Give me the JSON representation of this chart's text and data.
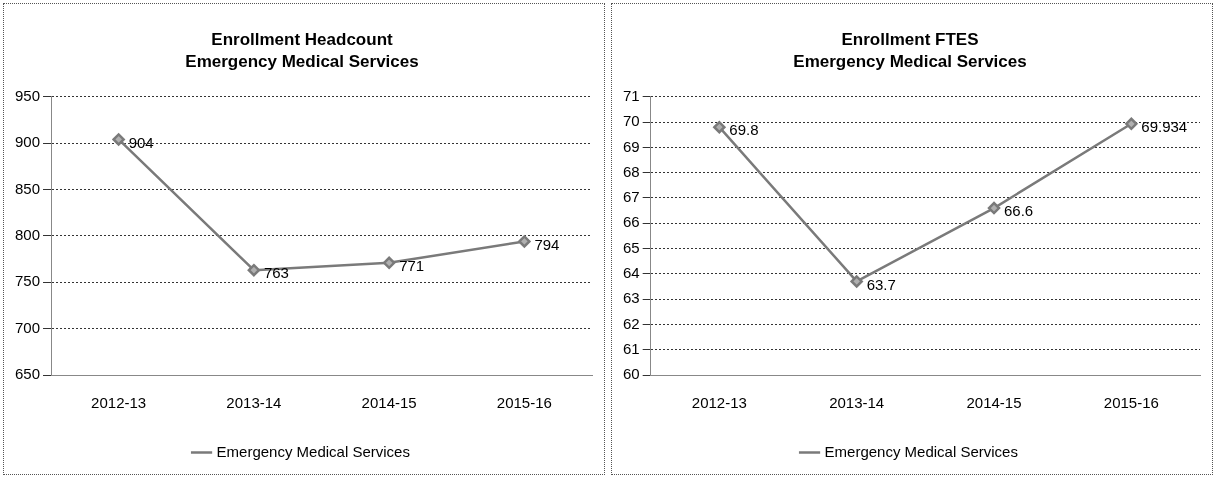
{
  "chart_data": [
    {
      "type": "line",
      "title": "Enrollment Headcount",
      "subtitle": "Emergency Medical Services",
      "categories": [
        "2012-13",
        "2013-14",
        "2014-15",
        "2015-16"
      ],
      "series": [
        {
          "name": "Emergency Medical Services",
          "color": "#7a7a7a",
          "values": [
            904,
            763,
            771,
            794
          ]
        }
      ],
      "ylim": [
        650,
        950
      ],
      "yticks": [
        650,
        700,
        750,
        800,
        850,
        900,
        950
      ],
      "grid": "y",
      "legend": "bottom",
      "marker": "diamond",
      "line_style": "solid",
      "data_labels": true
    },
    {
      "type": "line",
      "title": "Enrollment FTES",
      "subtitle": "Emergency Medical Services",
      "categories": [
        "2012-13",
        "2013-14",
        "2014-15",
        "2015-16"
      ],
      "series": [
        {
          "name": "Emergency Medical Services",
          "color": "#7a7a7a",
          "values": [
            69.8,
            63.7,
            66.6,
            69.934
          ]
        }
      ],
      "ylim": [
        60,
        71
      ],
      "yticks": [
        60,
        61,
        62,
        63,
        64,
        65,
        66,
        67,
        68,
        69,
        70,
        71
      ],
      "grid": "y",
      "legend": "bottom",
      "marker": "diamond",
      "line_style": "solid",
      "data_labels": true
    }
  ]
}
